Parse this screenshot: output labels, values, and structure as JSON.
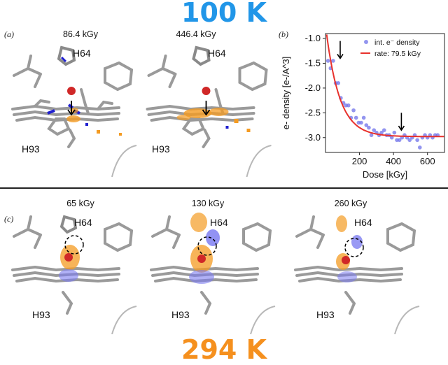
{
  "titles": {
    "top": "100 K",
    "bottom": "294 K",
    "top_color": "#2196e8",
    "bottom_color": "#f5901e"
  },
  "panels": {
    "a": {
      "letter": "(a)",
      "doses": [
        "86.4 kGy",
        "446.4 kGy"
      ]
    },
    "b": {
      "letter": "(b)"
    },
    "c": {
      "letter": "(c)",
      "doses": [
        "65 kGy",
        "130 kGy",
        "260 kGy"
      ]
    }
  },
  "residues": {
    "his_top": "H64",
    "his_bottom": "H93"
  },
  "chart_data": {
    "type": "scatter",
    "xlabel": "Dose [kGy]",
    "ylabel": "e- density [e-/A^3]",
    "xlim": [
      0,
      700
    ],
    "ylim": [
      -3.3,
      -0.9
    ],
    "xticks": [
      200,
      400,
      600
    ],
    "yticks": [
      -1.0,
      -1.5,
      -2.0,
      -2.5,
      -3.0
    ],
    "legend": {
      "position": "top-right",
      "entries": [
        "int. e⁻ density",
        "rate: 79.5 kGy"
      ]
    },
    "series": [
      {
        "name": "int. e⁻ density",
        "kind": "scatter",
        "color": "#6f72ea",
        "x": [
          15,
          30,
          45,
          60,
          75,
          90,
          105,
          120,
          135,
          150,
          165,
          180,
          195,
          210,
          225,
          240,
          255,
          270,
          285,
          300,
          315,
          330,
          345,
          360,
          375,
          390,
          405,
          420,
          435,
          450,
          465,
          480,
          495,
          510,
          525,
          540,
          555,
          570,
          585,
          600,
          615,
          630,
          645,
          660
        ],
        "y": [
          -1.45,
          -1.6,
          -1.45,
          -1.9,
          -1.9,
          -2.2,
          -2.3,
          -2.35,
          -2.35,
          -2.6,
          -2.45,
          -2.6,
          -2.7,
          -2.7,
          -2.6,
          -2.75,
          -2.8,
          -2.95,
          -2.85,
          -2.9,
          -2.95,
          -2.9,
          -2.85,
          -2.95,
          -2.95,
          -3.0,
          -2.9,
          -3.05,
          -3.05,
          -3.0,
          -2.95,
          -3.0,
          -3.05,
          -3.0,
          -2.95,
          -3.05,
          -3.2,
          -3.0,
          -2.95,
          -3.0,
          -2.95,
          -3.0,
          -2.95,
          -2.95
        ]
      },
      {
        "name": "rate: 79.5 kGy",
        "kind": "line",
        "color": "#e8312c",
        "model": {
          "A": -2.98,
          "B": 2.25,
          "tau": 79.5
        }
      }
    ],
    "annotations": [
      {
        "label": "arrow",
        "x": 86.4,
        "y_top": -1.05,
        "y_bottom": -1.4
      },
      {
        "label": "arrow",
        "x": 446.4,
        "y_top": -2.5,
        "y_bottom": -2.85
      }
    ]
  }
}
